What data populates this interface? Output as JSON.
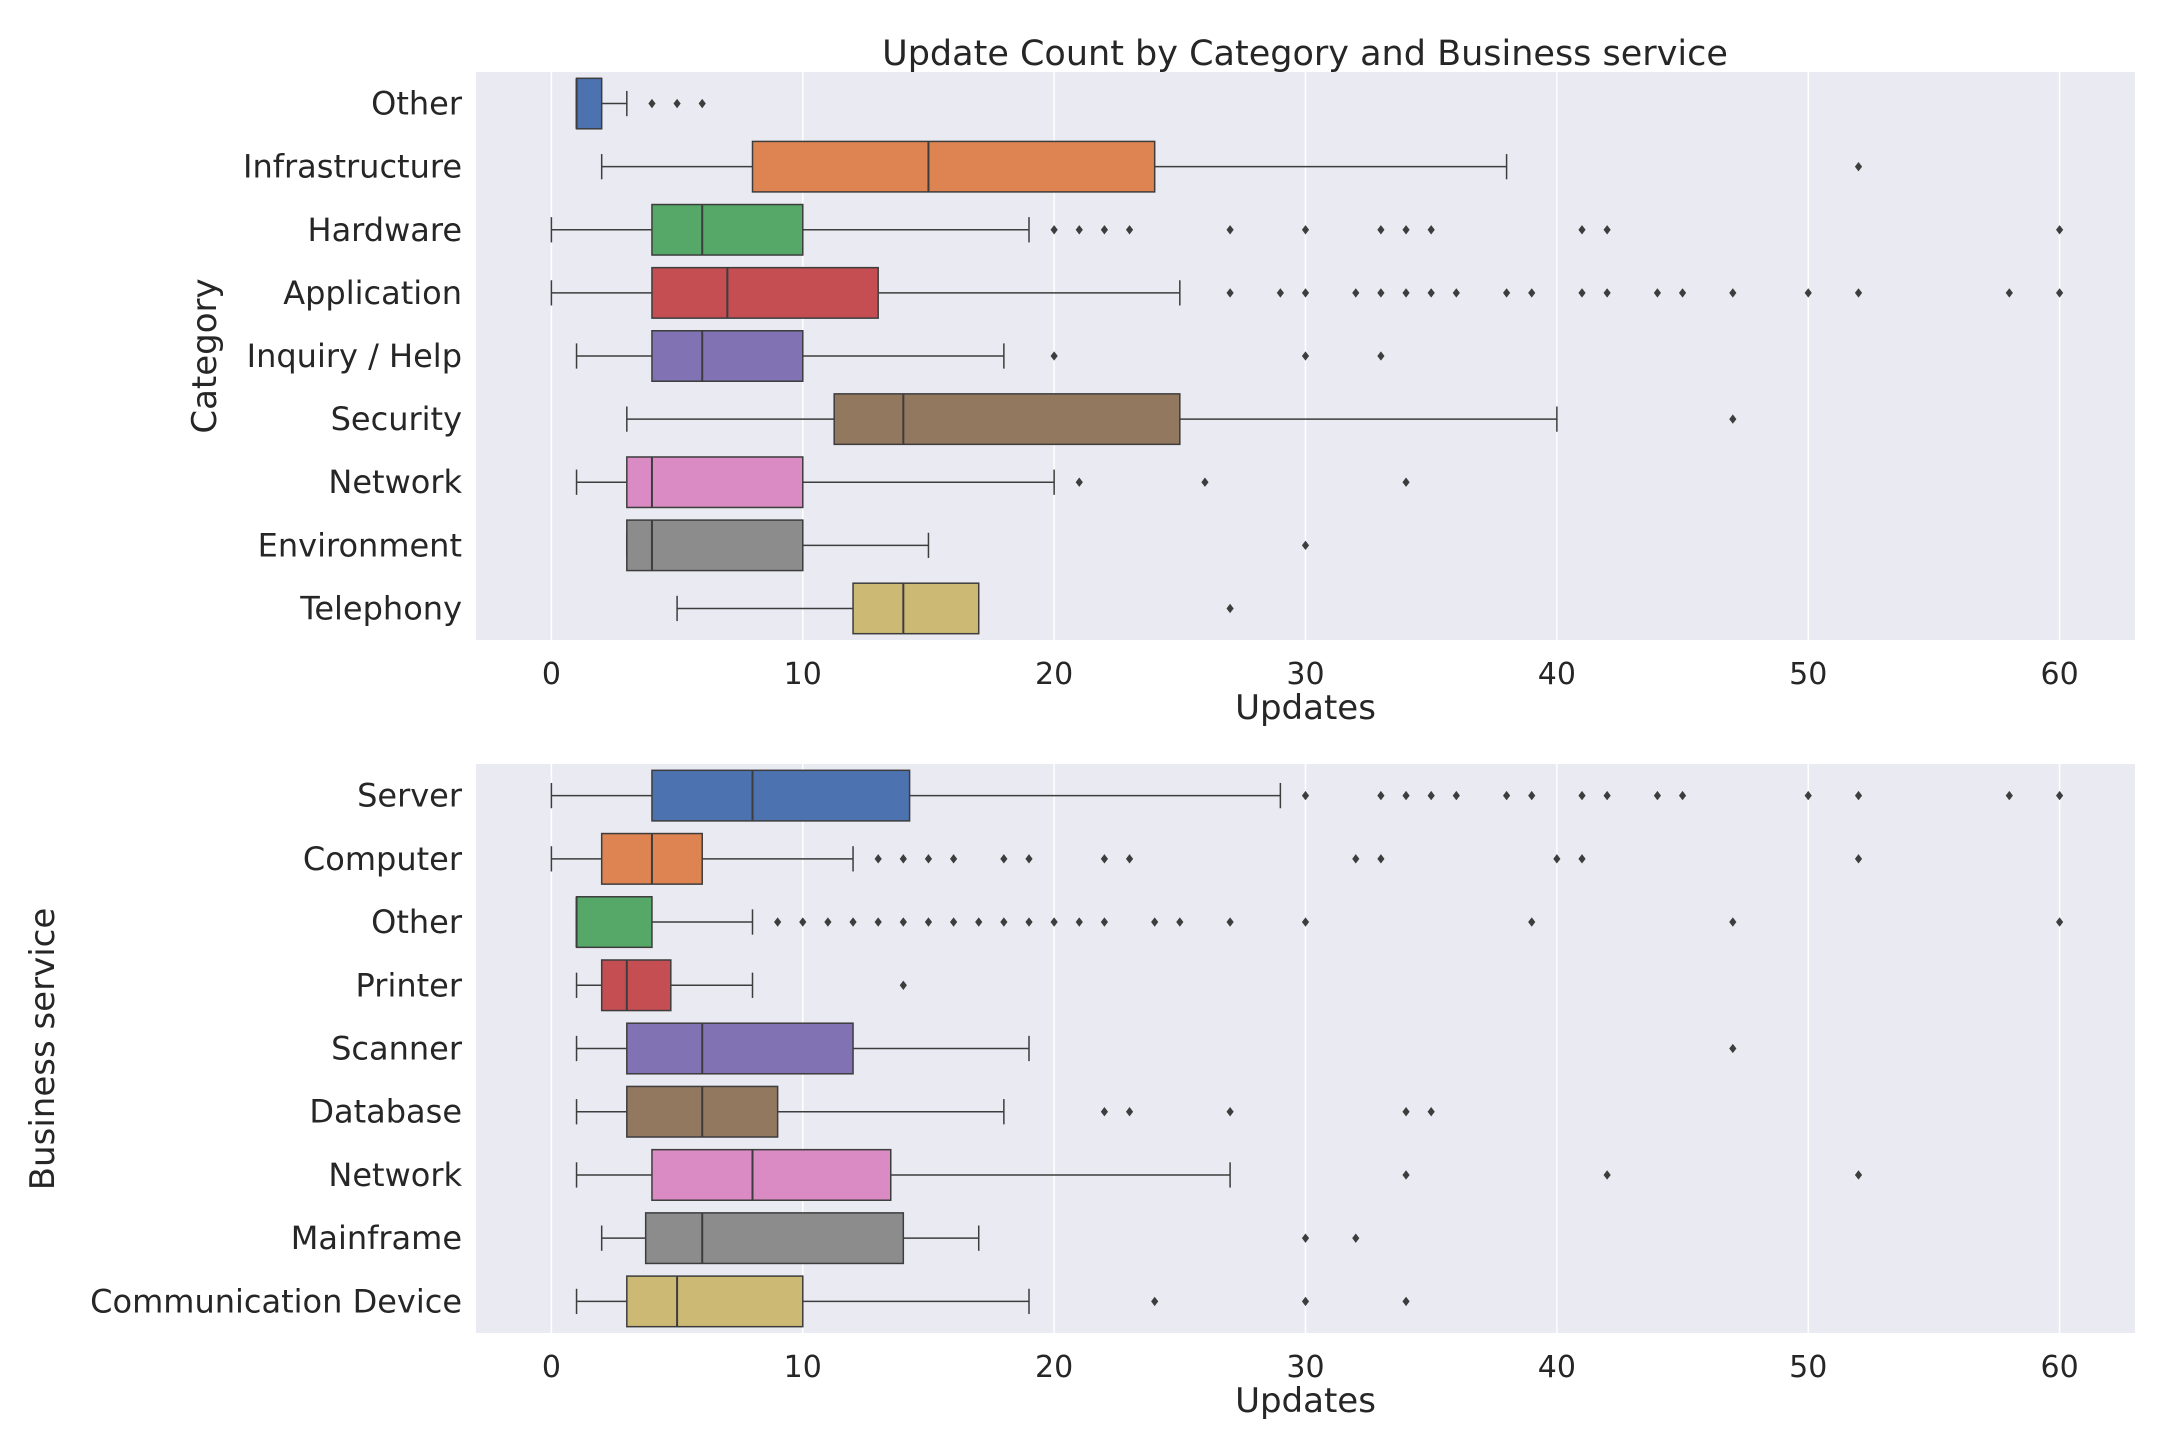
{
  "figure_title": "Update Count by Category and Business service",
  "chart_data": [
    {
      "type": "box",
      "title": "Update Count by Category and Business service",
      "xlabel": "Updates",
      "ylabel": "Category",
      "xlim": [
        -3,
        63
      ],
      "xticks": [
        "0",
        "10",
        "20",
        "30",
        "40",
        "50",
        "60"
      ],
      "xtick_values": [
        0,
        10,
        20,
        30,
        40,
        50,
        60
      ],
      "grid": true,
      "categories": [
        "Other",
        "Infrastructure",
        "Hardware",
        "Application",
        "Inquiry / Help",
        "Security",
        "Network",
        "Environment",
        "Telephony"
      ],
      "colors": [
        "#4c72b0",
        "#dd8452",
        "#55a868",
        "#c44e52",
        "#8172b3",
        "#937860",
        "#da8bc3",
        "#8c8c8c",
        "#ccb974"
      ],
      "boxes": [
        {
          "whislo": 1,
          "q1": 1,
          "med": 1,
          "q3": 2,
          "whishi": 3,
          "fliers": [
            4,
            5,
            6
          ]
        },
        {
          "whislo": 2,
          "q1": 8,
          "med": 15,
          "q3": 24,
          "whishi": 38,
          "fliers": [
            52
          ]
        },
        {
          "whislo": 0,
          "q1": 4,
          "med": 6,
          "q3": 10,
          "whishi": 19,
          "fliers": [
            20,
            21,
            22,
            23,
            27,
            30,
            33,
            34,
            35,
            41,
            42,
            60
          ]
        },
        {
          "whislo": 0,
          "q1": 4,
          "med": 7,
          "q3": 13,
          "whishi": 25,
          "fliers": [
            27,
            29,
            30,
            32,
            33,
            34,
            35,
            36,
            38,
            39,
            41,
            42,
            44,
            45,
            47,
            50,
            52,
            58,
            60
          ]
        },
        {
          "whislo": 1,
          "q1": 4,
          "med": 6,
          "q3": 10,
          "whishi": 18,
          "fliers": [
            20,
            30,
            33
          ]
        },
        {
          "whislo": 3,
          "q1": 11.25,
          "med": 14,
          "q3": 25,
          "whishi": 40,
          "fliers": [
            47
          ]
        },
        {
          "whislo": 1,
          "q1": 3,
          "med": 4,
          "q3": 10,
          "whishi": 20,
          "fliers": [
            21,
            26,
            34
          ]
        },
        {
          "whislo": 3,
          "q1": 3,
          "med": 4,
          "q3": 10,
          "whishi": 15,
          "fliers": [
            30
          ]
        },
        {
          "whislo": 5,
          "q1": 12,
          "med": 14,
          "q3": 17,
          "whishi": 17,
          "fliers": [
            27
          ]
        }
      ]
    },
    {
      "type": "box",
      "title": "",
      "xlabel": "Updates",
      "ylabel": "Business service",
      "xlim": [
        -3,
        63
      ],
      "xticks": [
        "0",
        "10",
        "20",
        "30",
        "40",
        "50",
        "60"
      ],
      "xtick_values": [
        0,
        10,
        20,
        30,
        40,
        50,
        60
      ],
      "grid": true,
      "categories": [
        "Server",
        "Computer",
        "Other",
        "Printer",
        "Scanner",
        "Database",
        "Network",
        "Mainframe",
        "Communication Device"
      ],
      "colors": [
        "#4c72b0",
        "#dd8452",
        "#55a868",
        "#c44e52",
        "#8172b3",
        "#937860",
        "#da8bc3",
        "#8c8c8c",
        "#ccb974"
      ],
      "boxes": [
        {
          "whislo": 0,
          "q1": 4,
          "med": 8,
          "q3": 14.25,
          "whishi": 29,
          "fliers": [
            30,
            33,
            34,
            35,
            36,
            38,
            39,
            41,
            42,
            44,
            45,
            50,
            52,
            58,
            60
          ]
        },
        {
          "whislo": 0,
          "q1": 2,
          "med": 4,
          "q3": 6,
          "whishi": 12,
          "fliers": [
            13,
            14,
            15,
            16,
            18,
            19,
            22,
            23,
            32,
            33,
            40,
            41,
            52
          ]
        },
        {
          "whislo": 1,
          "q1": 1,
          "med": 1,
          "q3": 4,
          "whishi": 8,
          "fliers": [
            9,
            10,
            11,
            12,
            13,
            14,
            15,
            16,
            17,
            18,
            19,
            20,
            21,
            22,
            24,
            25,
            27,
            30,
            39,
            47,
            60
          ]
        },
        {
          "whislo": 1,
          "q1": 2,
          "med": 3,
          "q3": 4.75,
          "whishi": 8,
          "fliers": [
            14
          ]
        },
        {
          "whislo": 1,
          "q1": 3,
          "med": 6,
          "q3": 12,
          "whishi": 19,
          "fliers": [
            47
          ]
        },
        {
          "whislo": 1,
          "q1": 3,
          "med": 6,
          "q3": 9,
          "whishi": 18,
          "fliers": [
            22,
            23,
            27,
            34,
            35
          ]
        },
        {
          "whislo": 1,
          "q1": 4,
          "med": 8,
          "q3": 13.5,
          "whishi": 27,
          "fliers": [
            34,
            42,
            52
          ]
        },
        {
          "whislo": 2,
          "q1": 3.75,
          "med": 6,
          "q3": 14,
          "whishi": 17,
          "fliers": [
            30,
            32
          ]
        },
        {
          "whislo": 1,
          "q1": 3,
          "med": 5,
          "q3": 10,
          "whishi": 19,
          "fliers": [
            24,
            30,
            34
          ]
        }
      ]
    }
  ]
}
